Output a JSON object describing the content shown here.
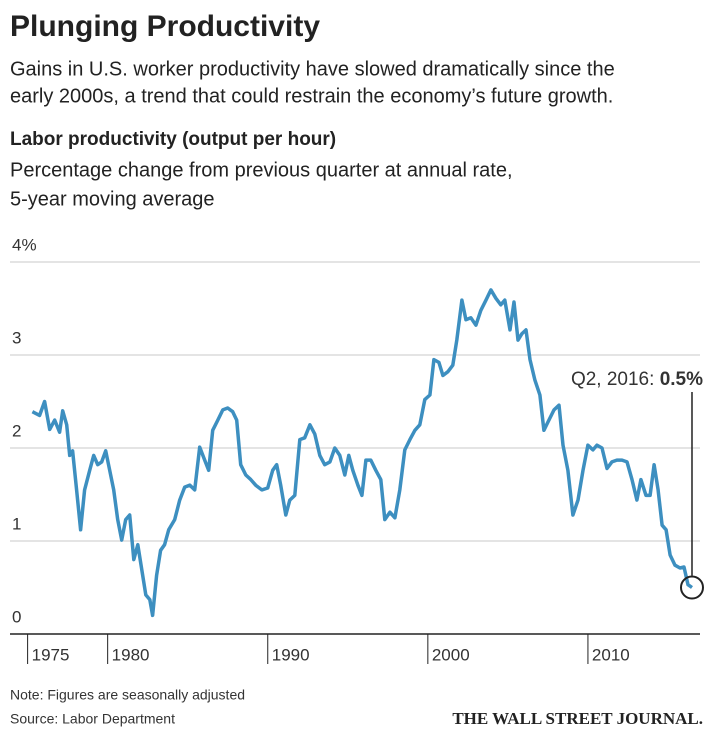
{
  "chart_data": {
    "type": "line",
    "title": "Plunging Productivity",
    "subtitle": [
      "Gains in U.S. worker productivity have slowed dramatically since the",
      "early 2000s, a trend that could restrain the economy’s future growth."
    ],
    "chart_title": "Labor productivity (output per hour)",
    "chart_subtitle": [
      "Percentage change from previous quarter at annual rate,",
      "5-year moving average"
    ],
    "x": [
      1975.3,
      1975.75,
      1976.06,
      1976.38,
      1976.69,
      1977.0,
      1977.19,
      1977.44,
      1977.63,
      1977.81,
      1978.06,
      1978.31,
      1978.56,
      1978.88,
      1979.13,
      1979.38,
      1979.63,
      1979.88,
      1980.13,
      1980.38,
      1980.63,
      1980.88,
      1981.13,
      1981.38,
      1981.63,
      1981.88,
      1982.13,
      1982.38,
      1982.63,
      1982.81,
      1983.06,
      1983.31,
      1983.56,
      1983.81,
      1984.19,
      1984.5,
      1984.81,
      1985.13,
      1985.44,
      1985.75,
      1986.06,
      1986.31,
      1986.56,
      1986.88,
      1987.19,
      1987.5,
      1987.81,
      1988.06,
      1988.31,
      1988.63,
      1988.94,
      1989.25,
      1989.63,
      1990.0,
      1990.31,
      1990.56,
      1990.81,
      1991.13,
      1991.38,
      1991.69,
      1992.0,
      1992.31,
      1992.63,
      1992.94,
      1993.25,
      1993.56,
      1993.88,
      1994.19,
      1994.5,
      1994.81,
      1995.06,
      1995.31,
      1995.63,
      1995.88,
      1996.13,
      1996.44,
      1996.75,
      1997.06,
      1997.31,
      1997.63,
      1997.94,
      1998.25,
      1998.56,
      1998.88,
      1999.19,
      1999.5,
      1999.81,
      2000.13,
      2000.38,
      2000.69,
      2000.94,
      2001.25,
      2001.56,
      2001.81,
      2002.13,
      2002.38,
      2002.69,
      2003.0,
      2003.31,
      2003.63,
      2003.94,
      2004.25,
      2004.56,
      2004.81,
      2005.13,
      2005.38,
      2005.63,
      2005.88,
      2006.13,
      2006.38,
      2006.69,
      2007.0,
      2007.25,
      2007.56,
      2007.88,
      2008.19,
      2008.44,
      2008.75,
      2009.06,
      2009.38,
      2009.69,
      2010.0,
      2010.31,
      2010.56,
      2010.88,
      2011.19,
      2011.5,
      2011.81,
      2012.13,
      2012.44,
      2012.75,
      2013.06,
      2013.31,
      2013.63,
      2013.88,
      2014.13,
      2014.38,
      2014.63,
      2014.88,
      2015.13,
      2015.44,
      2015.75,
      2016.0,
      2016.25,
      2016.5
    ],
    "series": [
      {
        "color": "#3d8fc0",
        "values": [
          2.39,
          2.35,
          2.5,
          2.2,
          2.3,
          2.17,
          2.4,
          2.25,
          1.92,
          1.97,
          1.55,
          1.12,
          1.55,
          1.76,
          1.92,
          1.82,
          1.85,
          1.97,
          1.76,
          1.55,
          1.23,
          1.01,
          1.23,
          1.28,
          0.8,
          0.96,
          0.69,
          0.42,
          0.37,
          0.2,
          0.63,
          0.9,
          0.96,
          1.12,
          1.23,
          1.44,
          1.58,
          1.6,
          1.55,
          2.01,
          1.87,
          1.76,
          2.19,
          2.3,
          2.41,
          2.43,
          2.39,
          2.3,
          1.82,
          1.71,
          1.66,
          1.6,
          1.55,
          1.57,
          1.76,
          1.82,
          1.6,
          1.28,
          1.44,
          1.49,
          2.09,
          2.11,
          2.25,
          2.15,
          1.92,
          1.82,
          1.85,
          2.0,
          1.92,
          1.71,
          1.92,
          1.76,
          1.6,
          1.49,
          1.87,
          1.87,
          1.76,
          1.66,
          1.23,
          1.31,
          1.25,
          1.55,
          1.98,
          2.09,
          2.19,
          2.25,
          2.52,
          2.57,
          2.95,
          2.92,
          2.78,
          2.82,
          2.89,
          3.16,
          3.59,
          3.38,
          3.4,
          3.32,
          3.48,
          3.59,
          3.7,
          3.61,
          3.54,
          3.59,
          3.27,
          3.57,
          3.16,
          3.23,
          3.27,
          2.95,
          2.73,
          2.57,
          2.19,
          2.3,
          2.41,
          2.46,
          2.03,
          1.76,
          1.28,
          1.44,
          1.76,
          2.03,
          1.98,
          2.03,
          2.0,
          1.78,
          1.85,
          1.87,
          1.87,
          1.85,
          1.66,
          1.44,
          1.66,
          1.49,
          1.49,
          1.82,
          1.55,
          1.17,
          1.12,
          0.85,
          0.74,
          0.71,
          0.72,
          0.53,
          0.5
        ]
      }
    ],
    "xlim": [
      1973.9,
      2017
    ],
    "xticks": [
      1975,
      1980,
      1990,
      2000,
      2010
    ],
    "ylim": [
      0,
      4
    ],
    "yticks": [
      0,
      1,
      2,
      3,
      {
        "value": 4,
        "label": "4%"
      }
    ],
    "grid": true,
    "annotation": {
      "text": "Q2, 2016:",
      "value_label": "0.5%",
      "x": 2016.5,
      "value": 0.5
    },
    "note": "Note: Figures are seasonally adjusted",
    "source": "Source: Labor Department",
    "publisher": "THE WALL STREET JOURNAL."
  }
}
